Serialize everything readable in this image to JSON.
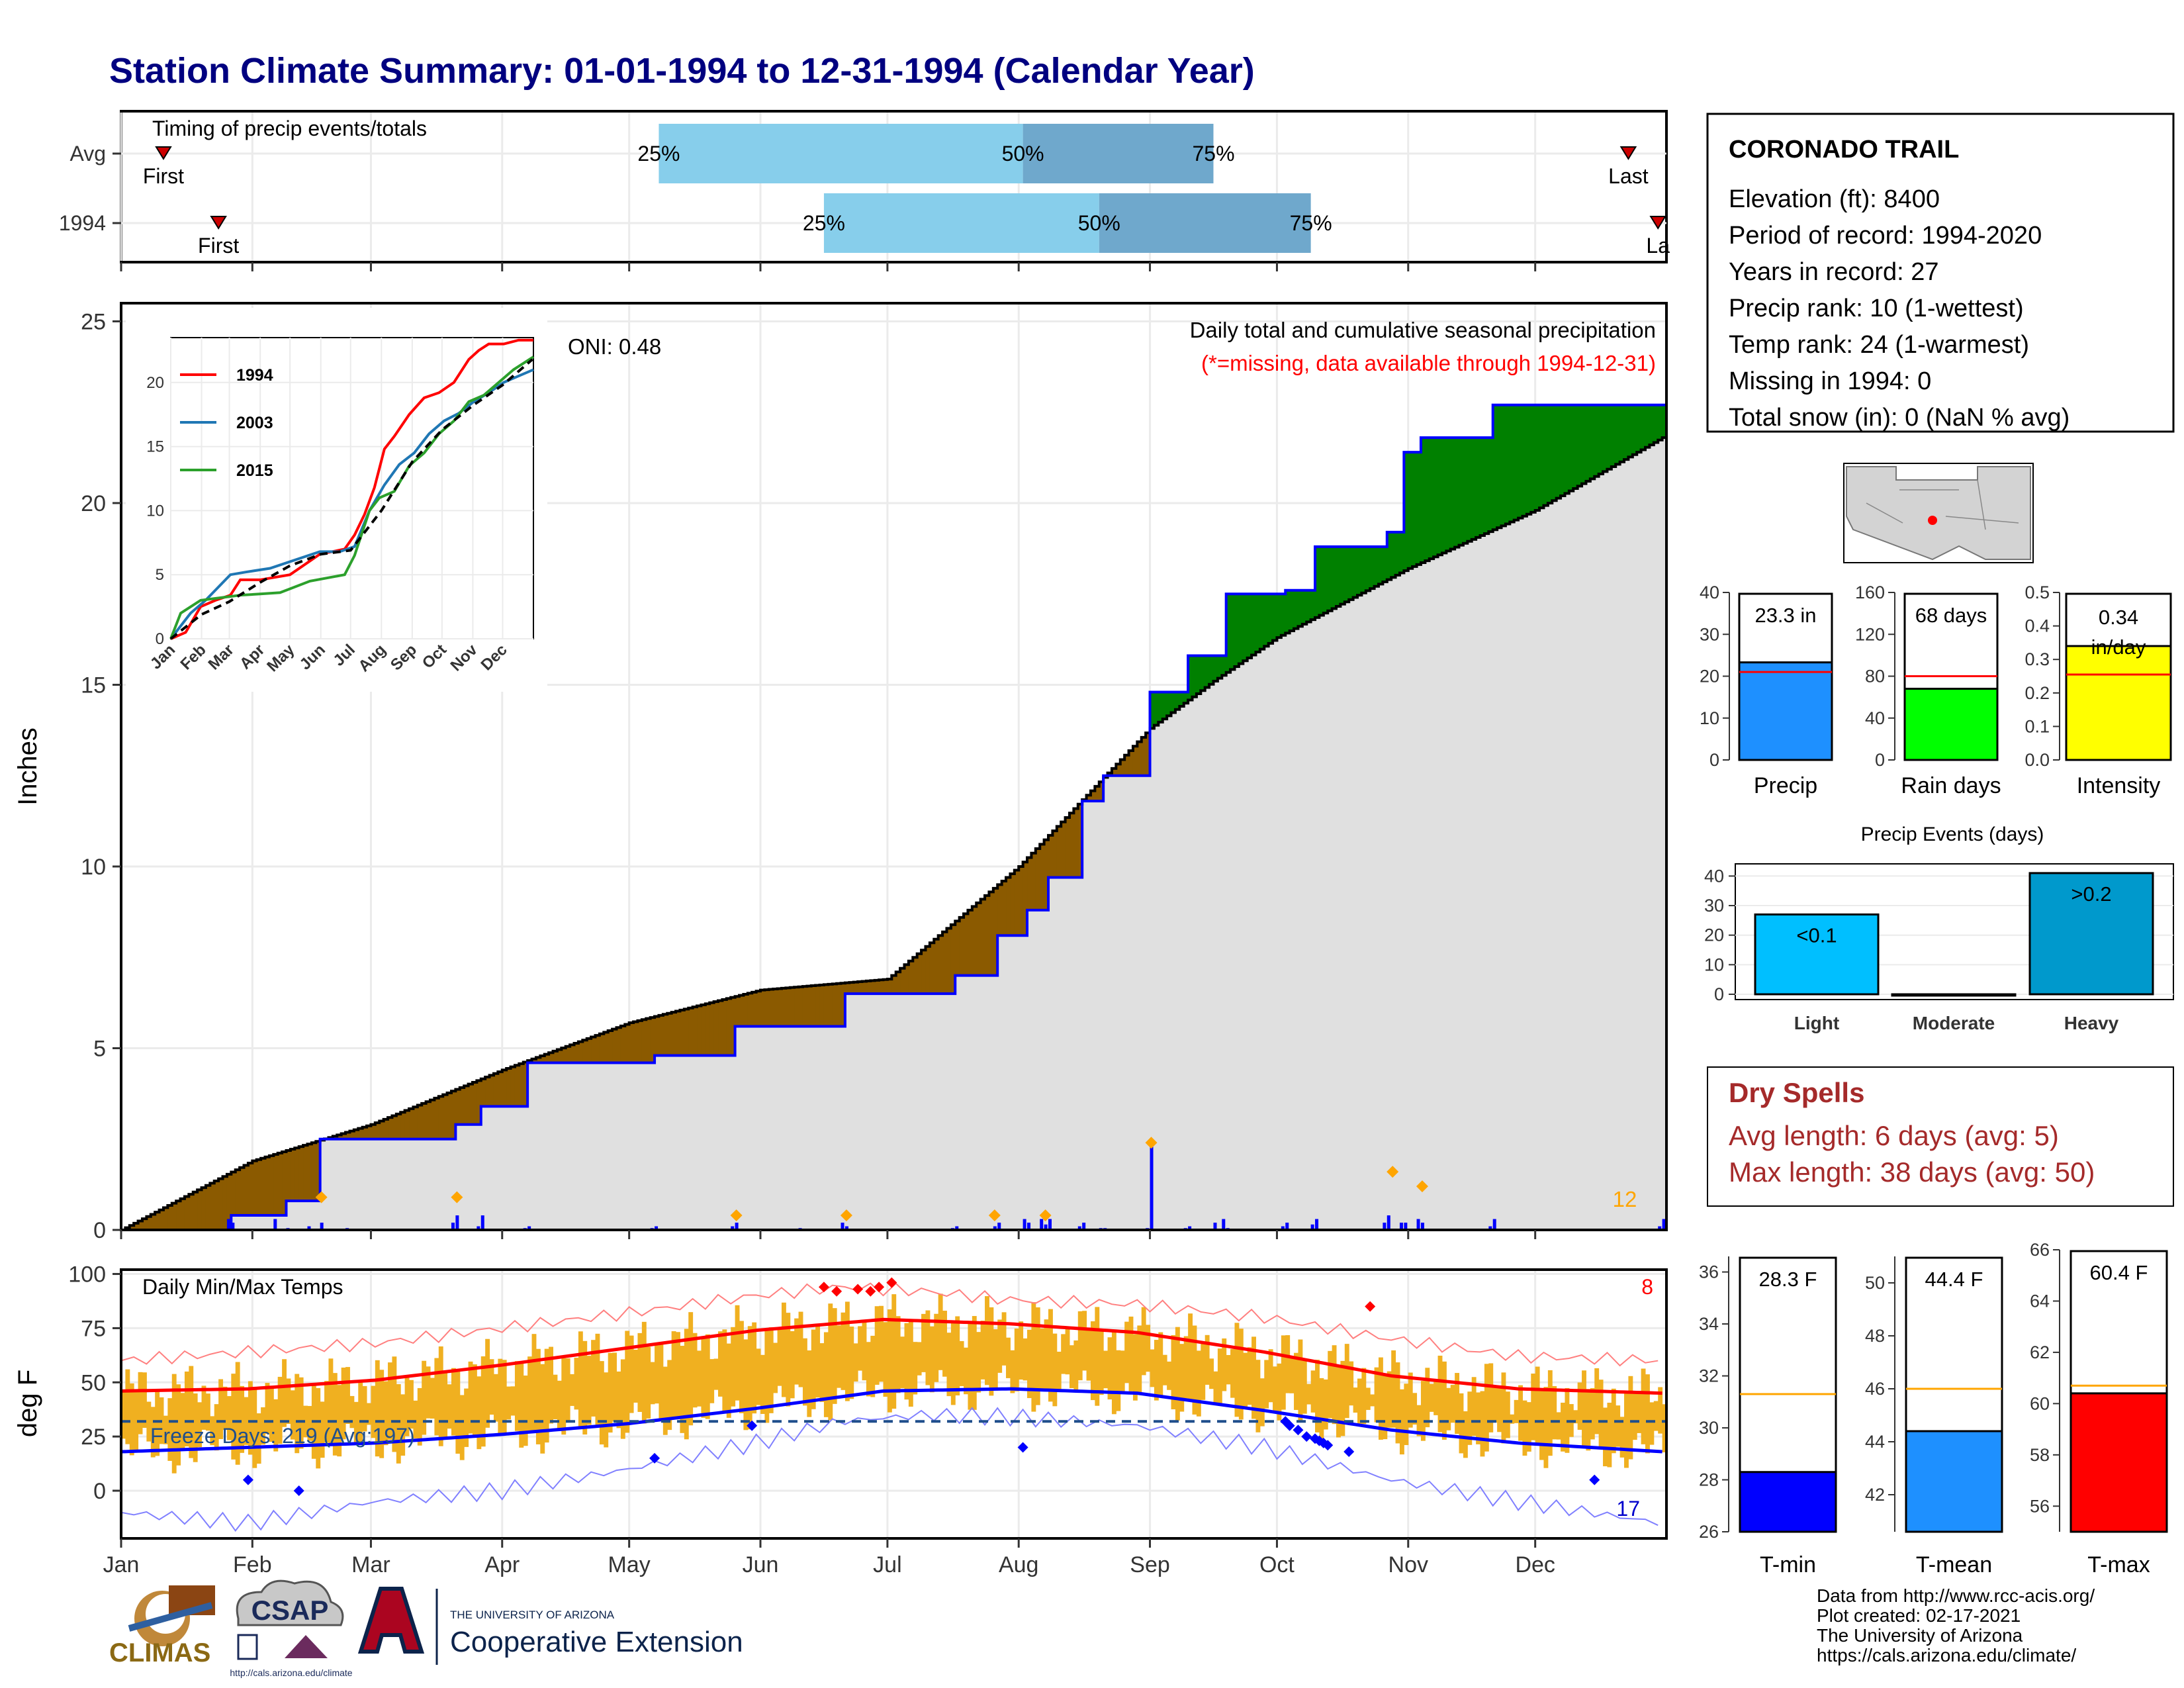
{
  "title": "Station Climate Summary: 01-01-1994 to 12-31-1994 (Calendar Year)",
  "months": [
    "Jan",
    "Feb",
    "Mar",
    "Apr",
    "May",
    "Jun",
    "Jul",
    "Aug",
    "Sep",
    "Oct",
    "Nov",
    "Dec"
  ],
  "colors": {
    "title": "#000080",
    "observed": "#0000ff",
    "deficit": "#8b5a00",
    "surplus": "#008000",
    "climo_fill": "#e0e0e0",
    "tbar": "#f0b020",
    "tmax": "#ff0000",
    "tmin": "#0000ff",
    "quart_light": "#87ceeb",
    "quart_dark": "#6fa8cc",
    "dry": "#a52a2a",
    "event_marker": "#ffa500"
  },
  "timing": {
    "label": "Timing of precip events/totals",
    "rows": [
      {
        "name": "Avg",
        "first_label": "First",
        "last_label": "Last",
        "first_day": 10,
        "last_day": 356,
        "q25": 127,
        "q50": 213,
        "q75": 258
      },
      {
        "name": "1994",
        "first_label": "First",
        "last_label": "La",
        "first_day": 23,
        "last_day": 363,
        "q25": 166,
        "q50": 231,
        "q75": 281
      }
    ],
    "q_labels": [
      "25%",
      "50%",
      "75%"
    ]
  },
  "station": {
    "name": "CORONADO TRAIL",
    "lines": [
      "Elevation (ft): 8400",
      "Period of record: 1994-2020",
      "Years in record: 27",
      "Precip rank: 10 (1-wettest)",
      "Temp rank: 24 (1-warmest)",
      "Missing in 1994: 0",
      "Total snow (in): 0 (NaN % avg)"
    ]
  },
  "chart_data": [
    {
      "id": "cumulative_precip",
      "type": "area",
      "ylabel": "Inches",
      "ylim": [
        0,
        25.5
      ],
      "yticks": [
        0,
        5,
        10,
        15,
        20,
        25
      ],
      "title": "Daily total and cumulative seasonal precipitation",
      "subtitle": "(*=missing, data available through 1994-12-31)",
      "oni_label": "ONI: 0.48",
      "corner_count": "12",
      "climatology_cumulative": {
        "day": [
          0,
          31,
          59,
          90,
          120,
          151,
          181,
          212,
          243,
          258,
          273,
          304,
          334,
          364
        ],
        "value": [
          0,
          1.9,
          2.9,
          4.4,
          5.7,
          6.6,
          6.9,
          10.0,
          13.8,
          15.1,
          16.3,
          18.2,
          19.8,
          21.8
        ]
      },
      "observed_cumulative": {
        "day": [
          0,
          25,
          26,
          36,
          39,
          44,
          47,
          78,
          79,
          84,
          85,
          95,
          96,
          125,
          126,
          144,
          145,
          170,
          171,
          196,
          197,
          206,
          207,
          213,
          214,
          218,
          219,
          226,
          227,
          231,
          232,
          242,
          243,
          251,
          252,
          260,
          261,
          274,
          275,
          281,
          282,
          298,
          299,
          302,
          303,
          306,
          307,
          323,
          324,
          364,
          365
        ],
        "value": [
          0,
          0,
          0.4,
          0.4,
          0.8,
          0.8,
          2.5,
          2.5,
          2.9,
          2.9,
          3.4,
          3.4,
          4.6,
          4.6,
          4.8,
          4.8,
          5.6,
          5.6,
          6.5,
          6.5,
          7.0,
          7.0,
          8.1,
          8.1,
          8.8,
          8.8,
          9.7,
          9.7,
          11.8,
          11.8,
          12.5,
          12.5,
          14.8,
          14.8,
          15.8,
          15.8,
          17.5,
          17.5,
          17.6,
          17.6,
          18.8,
          18.8,
          19.2,
          19.2,
          21.4,
          21.4,
          21.8,
          21.8,
          22.7,
          22.7,
          23.3
        ]
      },
      "daily_bars": {
        "day": [
          25,
          26,
          36,
          39,
          44,
          47,
          53,
          78,
          79,
          84,
          85,
          95,
          96,
          125,
          126,
          144,
          145,
          160,
          170,
          171,
          196,
          197,
          206,
          207,
          213,
          214,
          217,
          218,
          219,
          226,
          227,
          231,
          232,
          242,
          243,
          251,
          252,
          258,
          260,
          261,
          274,
          275,
          281,
          282,
          298,
          299,
          302,
          303,
          306,
          307,
          323,
          324,
          363,
          364
        ],
        "value": [
          0.3,
          0.2,
          0.3,
          0.05,
          0.1,
          0.2,
          0.05,
          0.2,
          0.4,
          0.1,
          0.4,
          0.05,
          0.1,
          0.05,
          0.1,
          0.1,
          0.2,
          0.05,
          0.2,
          0.1,
          0.05,
          0.1,
          0.1,
          0.2,
          0.3,
          0.2,
          0.3,
          0.15,
          0.3,
          0.1,
          0.2,
          0.05,
          0.05,
          0.05,
          2.4,
          0.05,
          0.1,
          0.2,
          0.3,
          0.05,
          0.1,
          0.2,
          0.15,
          0.3,
          0.2,
          0.4,
          0.2,
          0.2,
          0.3,
          0.2,
          0.1,
          0.3,
          0.1,
          0.3
        ]
      },
      "event_markers": {
        "day": [
          47,
          79,
          145,
          171,
          206,
          218,
          243,
          300,
          307
        ],
        "value": [
          0.9,
          0.9,
          0.4,
          0.4,
          0.4,
          0.4,
          2.4,
          1.6,
          1.2
        ]
      }
    },
    {
      "id": "inset_analogs",
      "type": "line",
      "months": [
        "Jan",
        "Feb",
        "Mar",
        "Apr",
        "May",
        "Jun",
        "Jul",
        "Aug",
        "Sep",
        "Oct",
        "Nov",
        "Dec"
      ],
      "yticks": [
        0,
        5,
        10,
        15,
        20
      ],
      "ylim": [
        0,
        23.5
      ],
      "series": [
        {
          "name": "1994",
          "color": "#ff0000",
          "x": [
            0,
            15,
            30,
            45,
            60,
            70,
            90,
            120,
            150,
            175,
            185,
            195,
            205,
            215,
            225,
            240,
            255,
            270,
            285,
            300,
            310,
            320,
            335,
            350,
            365
          ],
          "y": [
            0,
            0.5,
            2.5,
            3.0,
            3.4,
            4.6,
            4.6,
            5.0,
            6.6,
            7.0,
            8.1,
            9.7,
            11.8,
            14.8,
            15.8,
            17.5,
            18.8,
            19.2,
            20.0,
            21.8,
            22.5,
            23.0,
            23.0,
            23.3,
            23.3
          ]
        },
        {
          "name": "2003",
          "color": "#1f77b4",
          "x": [
            0,
            20,
            35,
            60,
            75,
            100,
            150,
            170,
            185,
            200,
            215,
            230,
            245,
            260,
            275,
            290,
            305,
            320,
            335,
            350,
            365
          ],
          "y": [
            0,
            2.0,
            3.0,
            5.0,
            5.2,
            5.5,
            6.8,
            6.8,
            7.2,
            10.0,
            12.0,
            13.6,
            14.5,
            16.0,
            17.0,
            17.6,
            18.5,
            19.2,
            20.0,
            20.5,
            21.0
          ]
        },
        {
          "name": "2015",
          "color": "#2ca02c",
          "x": [
            0,
            10,
            30,
            50,
            70,
            90,
            110,
            140,
            175,
            185,
            200,
            210,
            225,
            240,
            255,
            270,
            285,
            300,
            315,
            330,
            345,
            365
          ],
          "y": [
            0,
            2.0,
            3.0,
            3.2,
            3.4,
            3.5,
            3.6,
            4.5,
            5.0,
            6.5,
            10.0,
            11.0,
            11.5,
            13.5,
            14.5,
            16.0,
            17.0,
            18.5,
            19.0,
            20.0,
            21.0,
            22.0
          ]
        },
        {
          "name": "avg",
          "color": "#000000",
          "dashed": true,
          "x": [
            0,
            31,
            59,
            90,
            120,
            151,
            181,
            212,
            243,
            273,
            304,
            334,
            364
          ],
          "y": [
            0,
            1.9,
            2.9,
            4.4,
            5.7,
            6.6,
            6.9,
            10.0,
            13.8,
            16.3,
            18.2,
            19.8,
            21.8
          ]
        }
      ]
    },
    {
      "id": "precip_stats",
      "type": "bar",
      "panels": [
        {
          "xlabel": "Precip",
          "value": 23.3,
          "avg": 21.0,
          "label": "23.3 in",
          "color": "#1e90ff",
          "ylim": [
            0,
            40
          ],
          "yticks": [
            0,
            10,
            20,
            30,
            40
          ]
        },
        {
          "xlabel": "Rain days",
          "value": 68,
          "avg": 80,
          "label": "68 days",
          "color": "#00ff00",
          "ylim": [
            0,
            160
          ],
          "yticks": [
            0,
            40,
            80,
            120,
            160
          ]
        },
        {
          "xlabel": "Intensity",
          "value": 0.34,
          "avg": 0.255,
          "label": "0.34 in/day",
          "color": "#ffff00",
          "ylim": [
            0,
            0.5
          ],
          "yticks": [
            0,
            0.1,
            0.2,
            0.3,
            0.4,
            0.5
          ]
        }
      ]
    },
    {
      "id": "precip_events",
      "type": "bar",
      "title": "Precip Events (days)",
      "categories": [
        "Light",
        "Moderate",
        "Heavy"
      ],
      "values": [
        27,
        0,
        41
      ],
      "value_labels": [
        "<0.1",
        "",
        ">0.2"
      ],
      "colors": [
        "#00bfff",
        "#00bfff",
        "#0099cc"
      ],
      "ylim": [
        0,
        43
      ],
      "yticks": [
        0,
        10,
        20,
        30,
        40
      ]
    },
    {
      "id": "daily_temps",
      "type": "bar",
      "title": "Daily Min/Max Temps",
      "ylabel": "deg F",
      "ylim": [
        -22,
        102
      ],
      "yticks": [
        0,
        25,
        50,
        75,
        100
      ],
      "freeze_line": 32,
      "freeze_label": "Freeze Days: 219 (Avg:197)",
      "max_count": "8",
      "min_count": "17",
      "avg_max": {
        "day": [
          0,
          30,
          60,
          90,
          120,
          150,
          180,
          210,
          240,
          270,
          300,
          330,
          364
        ],
        "value": [
          46,
          47,
          51,
          58,
          66,
          74,
          79,
          77,
          73,
          64,
          53,
          47,
          45
        ]
      },
      "avg_min": {
        "day": [
          0,
          30,
          60,
          90,
          120,
          150,
          180,
          210,
          240,
          270,
          300,
          330,
          364
        ],
        "value": [
          18,
          20,
          22,
          26,
          31,
          38,
          46,
          47,
          45,
          37,
          28,
          22,
          18
        ]
      },
      "record_max": {
        "day": [
          0,
          30,
          60,
          90,
          120,
          150,
          170,
          190,
          210,
          240,
          270,
          300,
          330,
          364
        ],
        "value": [
          60,
          64,
          68,
          75,
          82,
          90,
          94,
          92,
          88,
          86,
          80,
          70,
          62,
          60
        ]
      },
      "record_min": {
        "day": [
          0,
          30,
          60,
          90,
          120,
          150,
          170,
          190,
          210,
          240,
          270,
          300,
          330,
          364
        ],
        "value": [
          -10,
          -15,
          -5,
          0,
          10,
          22,
          32,
          35,
          34,
          30,
          20,
          5,
          -5,
          -15
        ]
      },
      "record_high_markers": {
        "day": [
          166,
          169,
          174,
          177,
          179,
          182,
          295
        ],
        "value": [
          94,
          92,
          93,
          92,
          94,
          96,
          85
        ]
      },
      "record_low_markers": {
        "day": [
          30,
          42,
          126,
          149,
          213,
          275,
          276,
          278,
          280,
          282,
          283,
          284,
          285,
          290,
          348
        ],
        "value": [
          5,
          0,
          15,
          30,
          20,
          32,
          30,
          28,
          25,
          24,
          23,
          22,
          21,
          18,
          5
        ]
      }
    },
    {
      "id": "temp_stats",
      "type": "bar",
      "panels": [
        {
          "xlabel": "T-min",
          "value": 28.3,
          "avg": 31.3,
          "label": "28.3 F",
          "color": "#0000ff",
          "ylim": [
            26,
            36.6
          ],
          "yticks": [
            26,
            28,
            30,
            32,
            34,
            36
          ]
        },
        {
          "xlabel": "T-mean",
          "value": 44.4,
          "avg": 46.0,
          "label": "44.4 F",
          "color": "#1e90ff",
          "ylim": [
            40.6,
            51
          ],
          "yticks": [
            42,
            44,
            46,
            48,
            50
          ]
        },
        {
          "xlabel": "T-max",
          "value": 60.4,
          "avg": 60.7,
          "label": "60.4 F",
          "color": "#ff0000",
          "ylim": [
            55,
            66
          ],
          "yticks": [
            56,
            58,
            60,
            62,
            64,
            66
          ]
        }
      ]
    }
  ],
  "dry_spells": {
    "title": "Dry Spells",
    "avg_line": "Avg length: 6 days (avg: 5)",
    "max_line": "Max length: 38 days (avg: 50)"
  },
  "footer": {
    "lines": [
      "Data from http://www.rcc-acis.org/",
      "Plot created: 02-17-2021",
      "The University of Arizona",
      "https://cals.arizona.edu/climate/"
    ],
    "climas": "CLIMAS",
    "csap": "CSAP",
    "csap_url": "http://cals.arizona.edu/climate",
    "ua_small": "THE UNIVERSITY OF ARIZONA",
    "ua_big": "Cooperative Extension"
  }
}
